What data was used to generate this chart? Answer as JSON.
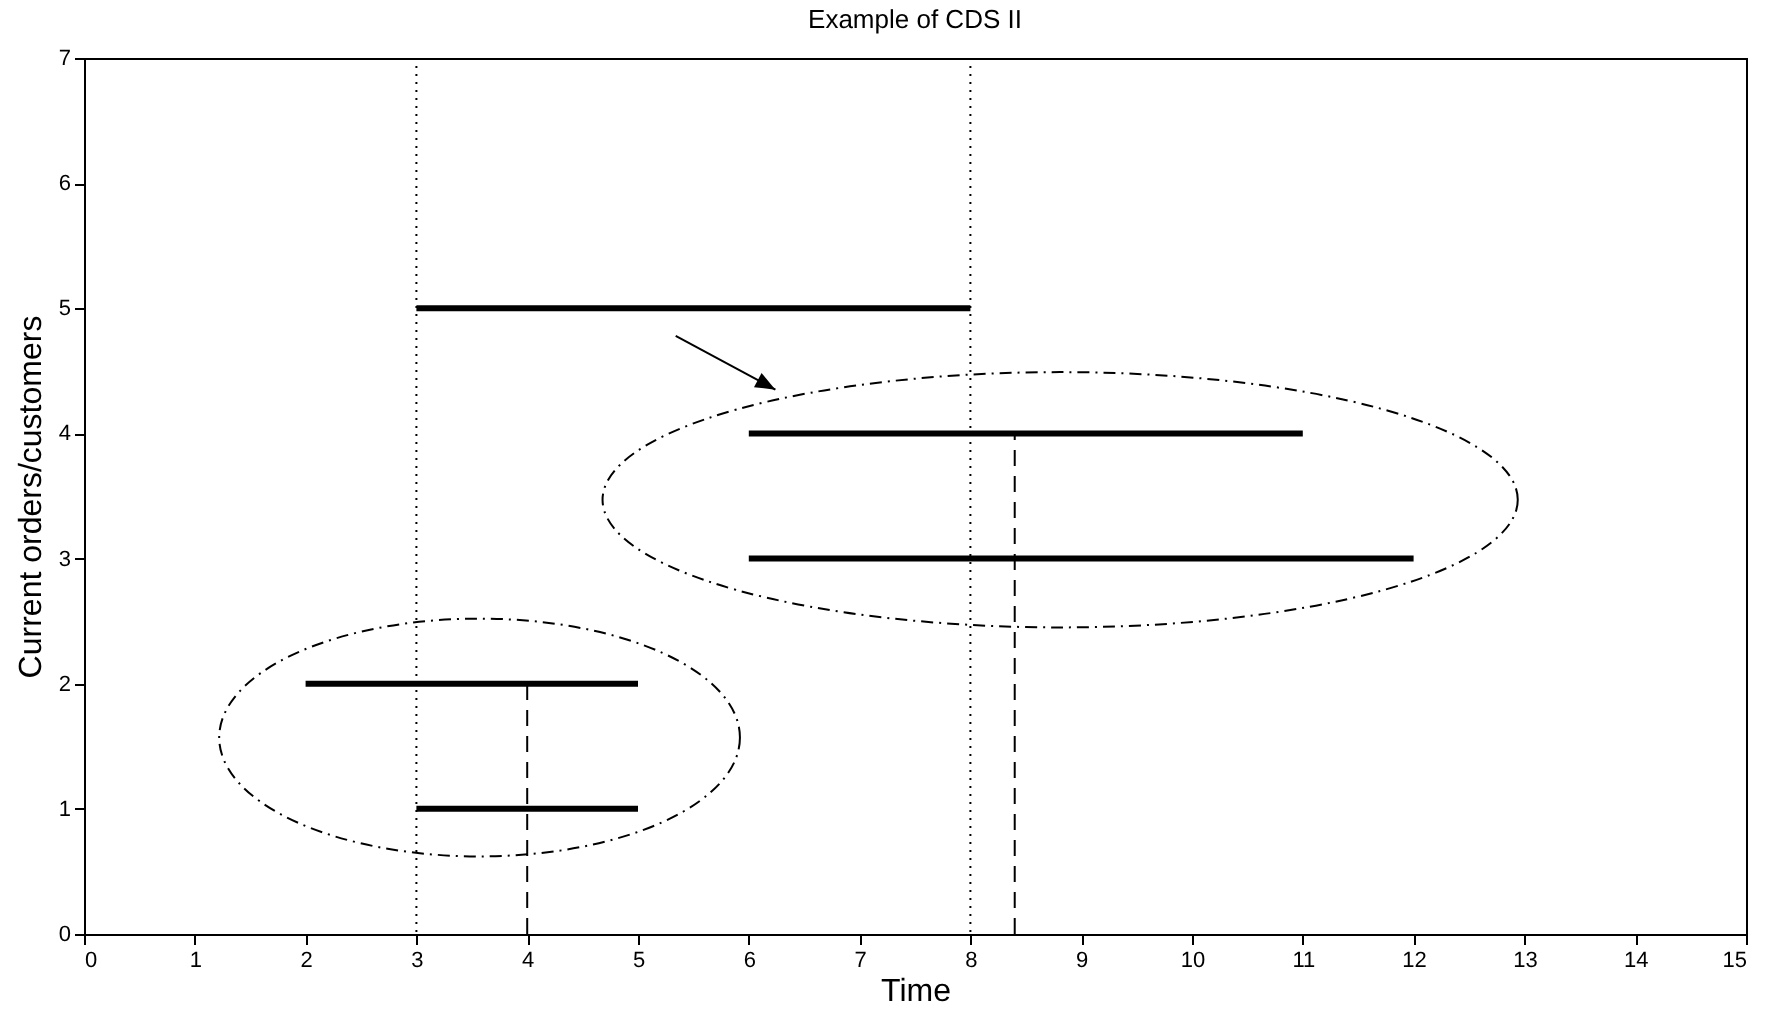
{
  "chart_data": {
    "type": "line",
    "title": "Example of CDS II",
    "xlabel": "Time",
    "ylabel": "Current orders/customers",
    "xlim": [
      0,
      15
    ],
    "xticks": [
      0,
      1,
      2,
      3,
      4,
      5,
      6,
      7,
      8,
      9,
      10,
      11,
      12,
      13,
      14,
      15
    ],
    "ylim": [
      0,
      7
    ],
    "yticks": [
      0,
      1,
      2,
      3,
      4,
      5,
      6,
      7
    ],
    "grid": false,
    "marker": "none",
    "series": [
      {
        "type": "line",
        "color": "#000000",
        "line_style": "solid",
        "x": [
          3,
          8
        ],
        "values": [
          5,
          5
        ]
      },
      {
        "type": "line",
        "color": "#000000",
        "line_style": "solid",
        "x": [
          6,
          11
        ],
        "values": [
          4,
          4
        ]
      },
      {
        "type": "line",
        "color": "#000000",
        "line_style": "solid",
        "x": [
          6,
          12
        ],
        "values": [
          3,
          3
        ]
      },
      {
        "type": "line",
        "color": "#000000",
        "line_style": "solid",
        "x": [
          2,
          5
        ],
        "values": [
          2,
          2
        ]
      },
      {
        "type": "line",
        "color": "#000000",
        "line_style": "solid",
        "x": [
          3,
          5
        ],
        "values": [
          1,
          1
        ]
      },
      {
        "type": "line",
        "color": "#000000",
        "line_style": "dashed",
        "x": [
          4,
          4
        ],
        "values": [
          0,
          2
        ]
      },
      {
        "type": "line",
        "color": "#000000",
        "line_style": "dashed",
        "x": [
          8.4,
          8.4
        ],
        "values": [
          0,
          4
        ]
      }
    ],
    "ref_lines": [
      {
        "axis": "x",
        "value": 3,
        "color": "#000000",
        "line_style": "dotted"
      },
      {
        "axis": "x",
        "value": 8,
        "color": "#000000",
        "line_style": "dotted"
      }
    ]
  }
}
